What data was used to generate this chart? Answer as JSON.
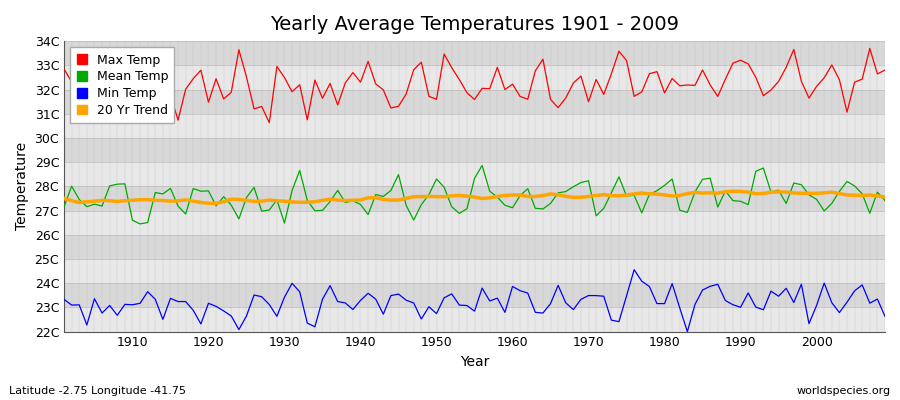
{
  "title": "Yearly Average Temperatures 1901 - 2009",
  "xlabel": "Year",
  "ylabel": "Temperature",
  "lat_lon_label": "Latitude -2.75 Longitude -41.75",
  "watermark": "worldspecies.org",
  "year_start": 1901,
  "year_end": 2009,
  "ylim": [
    22,
    34
  ],
  "yticks": [
    22,
    23,
    24,
    25,
    26,
    27,
    28,
    29,
    30,
    31,
    32,
    33,
    34
  ],
  "ytick_labels": [
    "22C",
    "23C",
    "24C",
    "25C",
    "26C",
    "27C",
    "28C",
    "29C",
    "30C",
    "31C",
    "32C",
    "33C",
    "34C"
  ],
  "xtick_years": [
    1910,
    1920,
    1930,
    1940,
    1950,
    1960,
    1970,
    1980,
    1990,
    2000
  ],
  "max_temp_color": "#ff0000",
  "mean_temp_color": "#00aa00",
  "min_temp_color": "#0000ff",
  "trend_color": "#ffa500",
  "band_color_light": "#e8e8e8",
  "band_color_dark": "#d8d8d8",
  "grid_color": "#bbbbbb",
  "legend_labels": [
    "Max Temp",
    "Mean Temp",
    "Min Temp",
    "20 Yr Trend"
  ],
  "title_fontsize": 14,
  "axis_label_fontsize": 10,
  "tick_label_fontsize": 9,
  "legend_fontsize": 9
}
